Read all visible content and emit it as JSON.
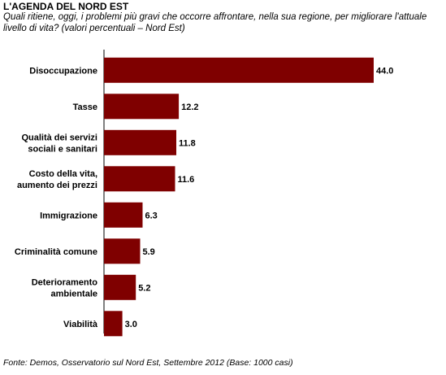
{
  "header": {
    "title": "L'AGENDA DEL NORD EST",
    "subtitle": "Quali ritiene, oggi, i problemi più gravi che occorre affrontare, nella sua regione, per migliorare l'attuale livello di vita? (valori percentuali – Nord Est)"
  },
  "footer": {
    "source": "Fonte: Demos, Osservatorio sul Nord Est, Settembre 2012 (Base: 1000 casi)"
  },
  "colors": {
    "bar": "#7f0000",
    "axis": "#000000"
  },
  "chart_data": {
    "type": "bar",
    "orientation": "horizontal",
    "title": "L'AGENDA DEL NORD EST",
    "categories": [
      [
        "Disoccupazione"
      ],
      [
        "Tasse"
      ],
      [
        "Qualità dei servizi",
        "sociali e sanitari"
      ],
      [
        "Costo della vita,",
        "aumento dei prezzi"
      ],
      [
        "Immigrazione"
      ],
      [
        "Criminalità comune"
      ],
      [
        "Deterioramento",
        "ambientale"
      ],
      [
        "Viabilità"
      ]
    ],
    "values": [
      44.0,
      12.2,
      11.8,
      11.6,
      6.3,
      5.9,
      5.2,
      3.0
    ],
    "value_labels": [
      "44.0",
      "12.2",
      "11.8",
      "11.6",
      "6.3",
      "5.9",
      "5.2",
      "3.0"
    ],
    "xlim": [
      0,
      44
    ],
    "grid": false,
    "legend": "none"
  }
}
